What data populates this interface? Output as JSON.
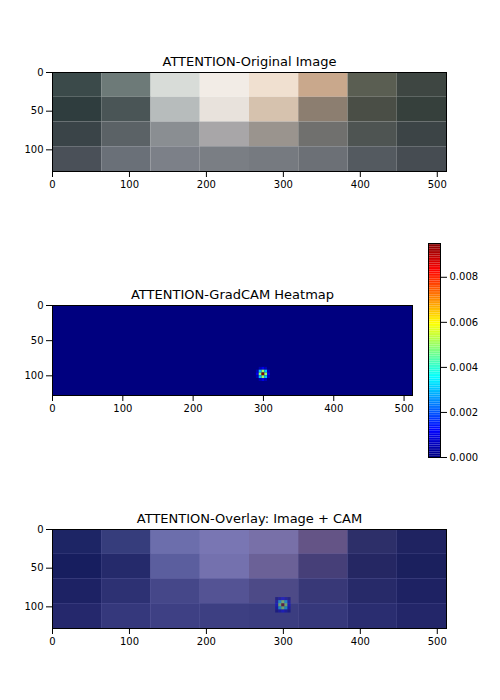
{
  "chart_data": [
    {
      "type": "image",
      "title": "ATTENTION-Original Image",
      "xlim": [
        0,
        512
      ],
      "ylim": [
        128,
        0
      ],
      "xticks": [
        0,
        100,
        200,
        300,
        400,
        500
      ],
      "yticks": [
        0,
        50,
        100
      ],
      "pixels": [
        [
          "#3b4a4a",
          "#6d7a78",
          "#d8dcd8",
          "#f2ece6",
          "#f0e0d0",
          "#c9a88c",
          "#5a5e52",
          "#3e4642"
        ],
        [
          "#2f3d3e",
          "#4a5556",
          "#b7bcbc",
          "#e8e2dc",
          "#d6c2ae",
          "#8c7e70",
          "#4a4e46",
          "#36403c"
        ],
        [
          "#3a4448",
          "#5b6266",
          "#8a8e92",
          "#a8a6a8",
          "#9a948e",
          "#70706e",
          "#4e5452",
          "#3c4446"
        ],
        [
          "#4a5058",
          "#6a7078",
          "#7c8088",
          "#7a7e84",
          "#767a80",
          "#6c7076",
          "#545a60",
          "#464c52"
        ]
      ]
    },
    {
      "type": "heatmap",
      "title": "ATTENTION-GradCAM Heatmap",
      "xlim": [
        0,
        512
      ],
      "ylim": [
        128,
        0
      ],
      "xticks": [
        0,
        100,
        200,
        300,
        400,
        500
      ],
      "yticks": [
        0,
        50,
        100
      ],
      "background": 0,
      "cells": {
        "x": [
          292,
          296,
          300,
          304,
          308
        ],
        "y": [
          90,
          94,
          98,
          102,
          106
        ],
        "values": [
          [
            0,
            0.0005,
            0.001,
            0.0005,
            0
          ],
          [
            0.0005,
            0.003,
            0.005,
            0.003,
            0.0005
          ],
          [
            0.001,
            0.005,
            0.0095,
            0.005,
            0.001
          ],
          [
            0.0005,
            0.003,
            0.005,
            0.003,
            0.0005
          ],
          [
            0,
            0.0005,
            0.001,
            0.0005,
            0
          ]
        ]
      },
      "colorbar": {
        "range": [
          0,
          0.0095
        ],
        "ticks": [
          {
            "value": 0,
            "label": "0.000"
          },
          {
            "value": 0.002,
            "label": "0.002"
          },
          {
            "value": 0.004,
            "label": "0.004"
          },
          {
            "value": 0.006,
            "label": "0.006"
          },
          {
            "value": 0.008,
            "label": "0.008"
          }
        ]
      }
    },
    {
      "type": "overlay",
      "title": "ATTENTION-Overlay: Image + CAM",
      "xlim": [
        0,
        512
      ],
      "ylim": [
        128,
        0
      ],
      "xticks": [
        0,
        100,
        200,
        300,
        400,
        500
      ],
      "yticks": [
        0,
        50,
        100
      ]
    }
  ]
}
